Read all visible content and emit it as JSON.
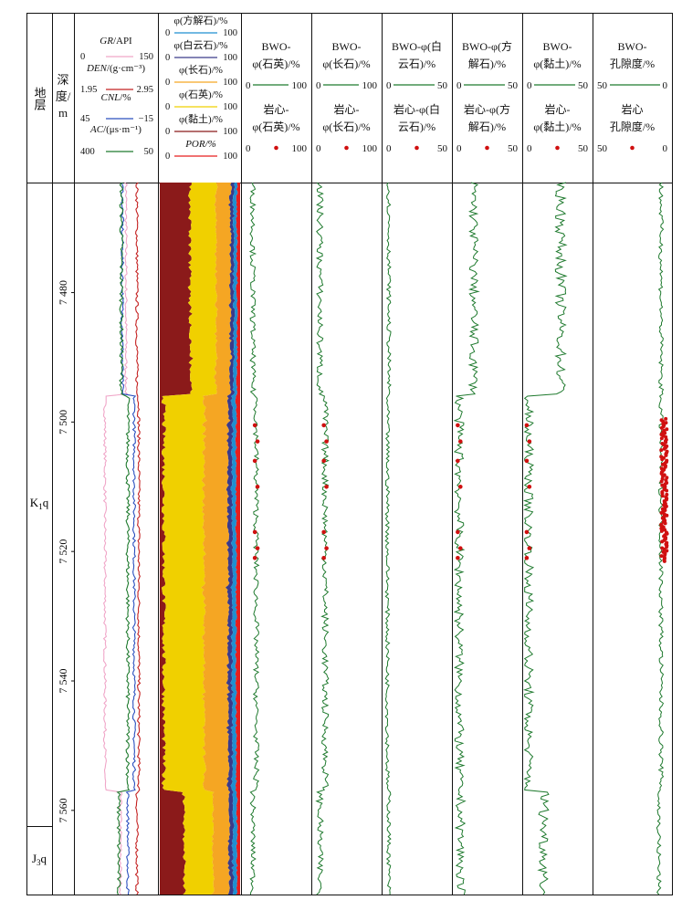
{
  "strata_header": "地层",
  "depth_header": [
    "深",
    "度/",
    "m"
  ],
  "formations": [
    {
      "label": "K",
      "sub": "1",
      "suffix": "q",
      "top": 7463,
      "bottom": 7562
    },
    {
      "label": "J",
      "sub": "3",
      "suffix": "q",
      "top": 7562,
      "bottom": 7573
    }
  ],
  "depth_ticks": [
    "7 480",
    "7 500",
    "7 520",
    "7 540",
    "7 560"
  ],
  "log_header": [
    {
      "name": "GR",
      "unit": "/API",
      "left": "0",
      "right": "150",
      "color": "#f0a6c8"
    },
    {
      "name": "DEN",
      "unit": "/(g·cm⁻³)",
      "left": "1.95",
      "right": "2.95",
      "color": "#c42020"
    },
    {
      "name": "CNL",
      "unit": "/%",
      "left": "45",
      "right": "−15",
      "color": "#2a4fbf"
    },
    {
      "name": "AC",
      "unit": "/(μs·m⁻¹)",
      "left": "400",
      "right": "50",
      "color": "#1f7a2e"
    }
  ],
  "mineral_header": [
    {
      "label": "φ(方解石)/%",
      "left": "0",
      "right": "100",
      "color": "#1f8fd0"
    },
    {
      "label": "φ(白云石)/%",
      "left": "0",
      "right": "100",
      "color": "#3a3a8a"
    },
    {
      "label": "φ(长石)/%",
      "left": "0",
      "right": "100",
      "color": "#f5a623"
    },
    {
      "label": "φ(石英)/%",
      "left": "0",
      "right": "100",
      "color": "#f0d000"
    },
    {
      "label": "φ(黏土)/%",
      "left": "0",
      "right": "100",
      "color": "#8b1a1a"
    },
    {
      "label": "POR/%",
      "left": "0",
      "right": "100",
      "color": "#e61e1e"
    }
  ],
  "bwo_tracks": [
    {
      "title": [
        "BWO-",
        "φ(石英)/%"
      ],
      "min": "0",
      "max": "100",
      "core": [
        "岩心-",
        "φ(石英)/%"
      ],
      "cmin": "0",
      "cmax": "100"
    },
    {
      "title": [
        "BWO-",
        "φ(长石)/%"
      ],
      "min": "0",
      "max": "100",
      "core": [
        "岩心-",
        "φ(长石)/%"
      ],
      "cmin": "0",
      "cmax": "100"
    },
    {
      "title": [
        "BWO-φ(白",
        "云石)/%"
      ],
      "min": "0",
      "max": "50",
      "core": [
        "岩心-φ(白",
        "云石)/%"
      ],
      "cmin": "0",
      "cmax": "50"
    },
    {
      "title": [
        "BWO-φ(方",
        "解石)/%"
      ],
      "min": "0",
      "max": "50",
      "core": [
        "岩心-φ(方",
        "解石)/%"
      ],
      "cmin": "0",
      "cmax": "50"
    },
    {
      "title": [
        "BWO-",
        "φ(黏土)/%"
      ],
      "min": "0",
      "max": "50",
      "core": [
        "岩心-",
        "φ(黏土)/%"
      ],
      "cmin": "0",
      "cmax": "50"
    },
    {
      "title": [
        "BWO-",
        "孔隙度/%"
      ],
      "min": "50",
      "max": "0",
      "core": [
        "岩心",
        "孔隙度/%"
      ],
      "cmin": "50",
      "cmax": "0"
    }
  ],
  "chart_data": {
    "type": "well_log",
    "depth_range_m": [
      7463,
      7573
    ],
    "curve_color": "#1f7a2e",
    "core_color": "#d01010",
    "core_depths_m": [
      7500.5,
      7503,
      7506,
      7510,
      7517,
      7519.5,
      7521
    ],
    "porosity_core_interval_m": [
      7499.5,
      7521.5
    ]
  }
}
